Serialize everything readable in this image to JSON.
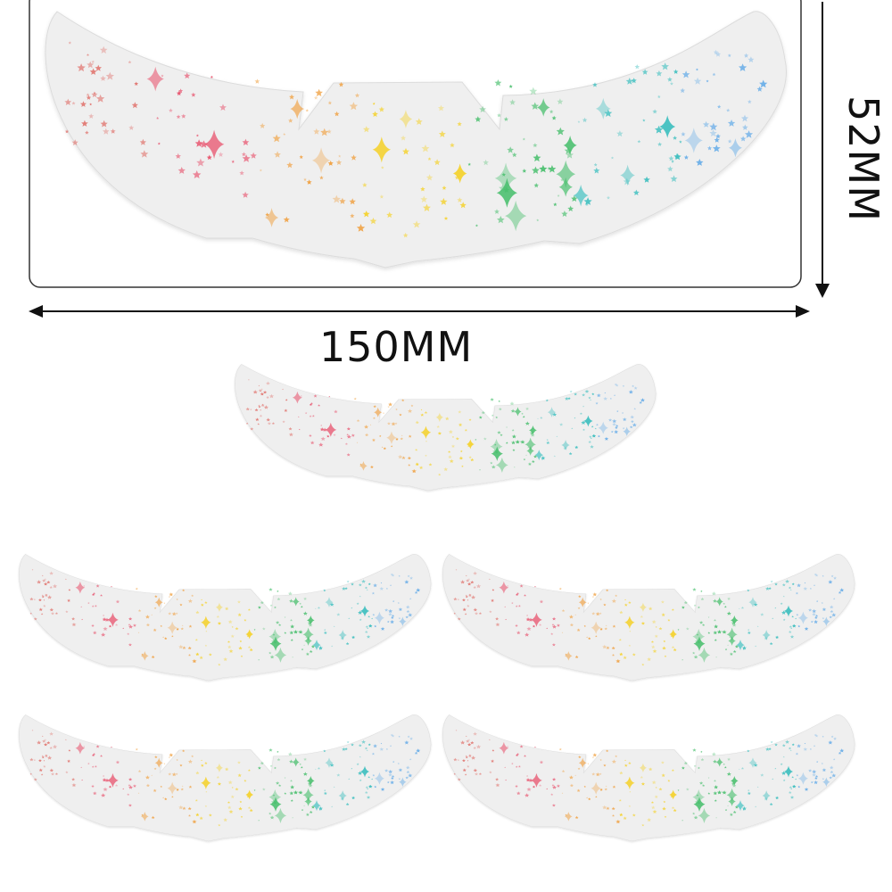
{
  "dimensions": {
    "width_label": "150MM",
    "height_label": "52MM"
  },
  "sticker": {
    "count_shown": 6,
    "base_color": "#efefef",
    "outline_color": "#dcdcdc",
    "star_palette": [
      "#e0706a",
      "#e8546e",
      "#f0a040",
      "#f5d020",
      "#4cc070",
      "#40c0c0",
      "#6aaee8"
    ]
  },
  "colors": {
    "frame": "#333333",
    "arrow": "#111111"
  }
}
